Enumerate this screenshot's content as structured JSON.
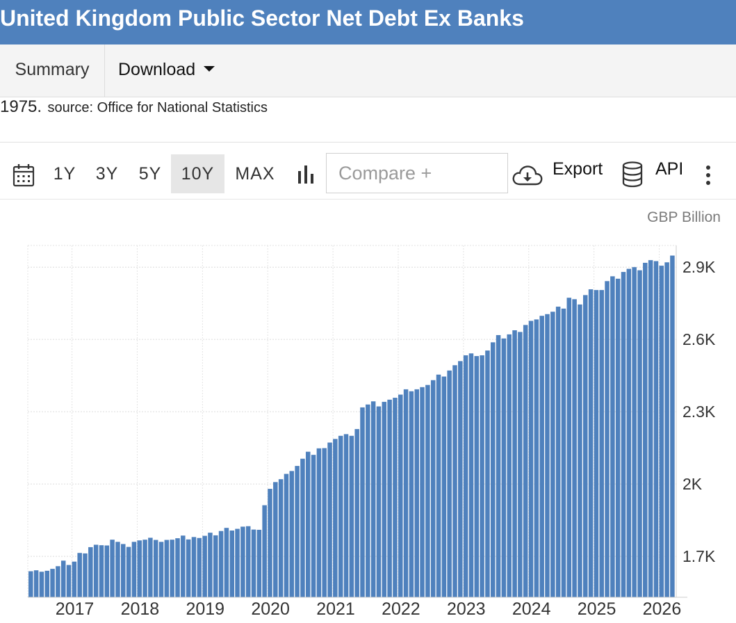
{
  "title": "United Kingdom Public Sector Net Debt Ex Banks",
  "tabs": [
    {
      "label": "Summary"
    },
    {
      "label": "Download"
    }
  ],
  "description": {
    "year_fragment": "1975.",
    "source": "source: Office for National Statistics"
  },
  "toolbar": {
    "ranges": [
      "1Y",
      "3Y",
      "5Y",
      "10Y",
      "MAX"
    ],
    "active_range": "10Y",
    "compare_placeholder": "Compare +",
    "export_label": "Export",
    "api_label": "API",
    "icons": [
      "calendar-icon",
      "bar-chart-icon",
      "cloud-download-icon",
      "database-icon",
      "more-vertical-icon"
    ]
  },
  "colors": {
    "banner": "#4f81bd",
    "bar": "#4f81bd"
  },
  "chart_data": {
    "type": "bar",
    "unit": "GBP Billion",
    "ylim": [
      1530,
      2990
    ],
    "yticks": [
      1700,
      2000,
      2300,
      2600,
      2900
    ],
    "ytick_labels": [
      "1.7K",
      "2K",
      "2.3K",
      "2.6K",
      "2.9K"
    ],
    "xtick_labels": [
      "2017",
      "2018",
      "2019",
      "2020",
      "2021",
      "2022",
      "2023",
      "2024",
      "2025",
      "2026"
    ],
    "grid": true,
    "start": "2016-05",
    "frequency": "monthly",
    "values": [
      1638,
      1642,
      1636,
      1640,
      1648,
      1659,
      1682,
      1664,
      1678,
      1714,
      1712,
      1738,
      1748,
      1746,
      1745,
      1769,
      1760,
      1751,
      1739,
      1760,
      1766,
      1769,
      1777,
      1768,
      1760,
      1768,
      1769,
      1775,
      1786,
      1770,
      1780,
      1776,
      1785,
      1798,
      1787,
      1805,
      1818,
      1807,
      1814,
      1823,
      1825,
      1811,
      1810,
      1912,
      1980,
      2008,
      2020,
      2042,
      2054,
      2075,
      2105,
      2134,
      2121,
      2148,
      2149,
      2172,
      2187,
      2200,
      2207,
      2200,
      2228,
      2318,
      2330,
      2343,
      2322,
      2341,
      2350,
      2358,
      2371,
      2393,
      2385,
      2393,
      2402,
      2411,
      2431,
      2454,
      2446,
      2471,
      2493,
      2510,
      2534,
      2542,
      2531,
      2534,
      2554,
      2588,
      2618,
      2604,
      2621,
      2638,
      2631,
      2660,
      2677,
      2683,
      2698,
      2705,
      2715,
      2736,
      2728,
      2773,
      2767,
      2745,
      2784,
      2808,
      2805,
      2805,
      2842,
      2862,
      2852,
      2880,
      2893,
      2900,
      2887,
      2918,
      2929,
      2925,
      2906,
      2920,
      2948
    ]
  }
}
